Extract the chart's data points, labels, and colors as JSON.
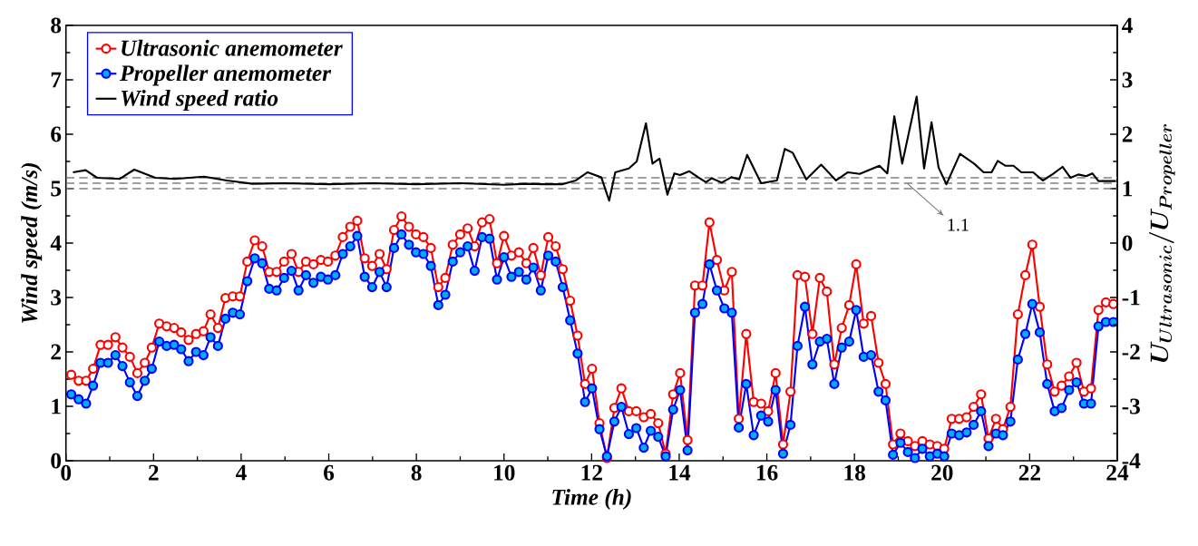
{
  "chart_data": {
    "type": "line",
    "xlabel": "Time (h)",
    "ylabel": "Wind speed (m/s)",
    "y2label": "U_{Ultrasonic} / U_{Propeller}",
    "xlim": [
      0,
      24
    ],
    "xticks": [
      0,
      2,
      4,
      6,
      8,
      10,
      12,
      14,
      16,
      18,
      20,
      22,
      24
    ],
    "ylim": [
      0,
      8
    ],
    "yticks": [
      0,
      1,
      2,
      3,
      4,
      5,
      6,
      7,
      8
    ],
    "y2lim": [
      -4,
      4
    ],
    "y2ticks": [
      -4,
      -3,
      -2,
      -1,
      0,
      1,
      2,
      3,
      4
    ],
    "legend": "top left",
    "marker": "circle",
    "line_style": "solid",
    "ref_lines": [
      {
        "axis": "y2",
        "value": 1.0,
        "color": "#808080",
        "line_style": "dashed"
      },
      {
        "axis": "y2",
        "value": 1.1,
        "label": "1.1",
        "color": "#808080",
        "line_style": "dashed"
      },
      {
        "axis": "y2",
        "value": 1.2,
        "color": "#808080",
        "line_style": "dashed"
      }
    ],
    "x": [
      0.12,
      0.29,
      0.46,
      0.62,
      0.79,
      0.96,
      1.13,
      1.29,
      1.46,
      1.63,
      1.8,
      1.96,
      2.13,
      2.3,
      2.47,
      2.63,
      2.8,
      2.97,
      3.14,
      3.3,
      3.47,
      3.64,
      3.81,
      3.97,
      4.14,
      4.31,
      4.48,
      4.64,
      4.81,
      4.98,
      5.15,
      5.31,
      5.48,
      5.65,
      5.82,
      5.98,
      6.15,
      6.32,
      6.49,
      6.65,
      6.82,
      6.99,
      7.16,
      7.32,
      7.49,
      7.66,
      7.83,
      7.99,
      8.16,
      8.33,
      8.5,
      8.66,
      8.83,
      9.0,
      9.17,
      9.33,
      9.5,
      9.67,
      9.84,
      10.0,
      10.17,
      10.34,
      10.51,
      10.67,
      10.84,
      11.01,
      11.18,
      11.34,
      11.51,
      11.68,
      11.85,
      12.01,
      12.18,
      12.35,
      12.52,
      12.68,
      12.85,
      13.02,
      13.19,
      13.35,
      13.52,
      13.69,
      13.86,
      14.02,
      14.19,
      14.36,
      14.53,
      14.69,
      14.86,
      15.03,
      15.2,
      15.36,
      15.53,
      15.7,
      15.87,
      16.03,
      16.2,
      16.37,
      16.54,
      16.7,
      16.87,
      17.04,
      17.21,
      17.37,
      17.54,
      17.71,
      17.88,
      18.04,
      18.21,
      18.38,
      18.55,
      18.71,
      18.88,
      19.05,
      19.22,
      19.38,
      19.55,
      19.72,
      19.89,
      20.05,
      20.22,
      20.39,
      20.56,
      20.72,
      20.89,
      21.06,
      21.23,
      21.39,
      21.56,
      21.73,
      21.9,
      22.06,
      22.23,
      22.4,
      22.57,
      22.73,
      22.9,
      23.07,
      23.24,
      23.4,
      23.57,
      23.74,
      23.91
    ],
    "series": [
      {
        "name": "Ultrasonic anemometer",
        "color": "#ff0000",
        "values": [
          1.58,
          1.47,
          1.47,
          1.69,
          2.13,
          2.13,
          2.27,
          2.08,
          1.91,
          1.61,
          1.8,
          2.08,
          2.52,
          2.47,
          2.44,
          2.36,
          2.22,
          2.33,
          2.38,
          2.69,
          2.44,
          2.99,
          3.02,
          3.02,
          3.66,
          4.05,
          3.94,
          3.47,
          3.47,
          3.66,
          3.8,
          3.47,
          3.66,
          3.61,
          3.69,
          3.66,
          3.77,
          4.11,
          4.3,
          4.41,
          3.72,
          3.58,
          3.8,
          3.52,
          4.24,
          4.49,
          4.3,
          4.16,
          4.11,
          3.91,
          3.19,
          3.36,
          3.97,
          4.16,
          4.27,
          3.94,
          4.38,
          4.44,
          3.63,
          4.13,
          3.77,
          3.83,
          3.63,
          3.91,
          3.41,
          4.11,
          3.94,
          3.52,
          2.94,
          2.3,
          1.41,
          1.69,
          0.69,
          0.05,
          0.97,
          1.33,
          0.91,
          0.91,
          0.8,
          0.86,
          0.69,
          0.13,
          1.22,
          1.61,
          0.38,
          3.22,
          3.22,
          4.38,
          3.69,
          3.13,
          3.47,
          0.77,
          2.33,
          1.08,
          1.05,
          0.91,
          1.61,
          0.3,
          1.27,
          3.41,
          3.38,
          2.33,
          3.36,
          3.11,
          1.77,
          2.44,
          2.86,
          3.61,
          2.52,
          2.66,
          1.8,
          1.41,
          0.3,
          0.5,
          0.36,
          0.27,
          0.36,
          0.3,
          0.27,
          0.22,
          0.77,
          0.77,
          0.8,
          0.99,
          1.22,
          0.41,
          0.77,
          0.58,
          0.99,
          2.69,
          3.41,
          3.97,
          2.83,
          1.77,
          1.27,
          1.38,
          1.55,
          1.8,
          1.27,
          1.33,
          2.77,
          2.91,
          2.88
        ]
      },
      {
        "name": "Propeller anemometer",
        "color": "#0000ff",
        "values": [
          1.22,
          1.13,
          1.05,
          1.38,
          1.8,
          1.8,
          1.94,
          1.74,
          1.44,
          1.19,
          1.47,
          1.69,
          2.19,
          2.11,
          2.13,
          2.05,
          1.83,
          2.0,
          1.94,
          2.27,
          2.11,
          2.61,
          2.72,
          2.69,
          3.3,
          3.72,
          3.63,
          3.16,
          3.13,
          3.36,
          3.49,
          3.13,
          3.41,
          3.27,
          3.38,
          3.33,
          3.41,
          3.8,
          3.94,
          4.13,
          3.38,
          3.19,
          3.47,
          3.19,
          3.91,
          4.16,
          3.97,
          3.83,
          3.8,
          3.58,
          2.86,
          3.05,
          3.66,
          3.83,
          3.94,
          3.49,
          4.11,
          4.08,
          3.33,
          3.74,
          3.38,
          3.47,
          3.33,
          3.55,
          3.13,
          3.77,
          3.66,
          3.19,
          2.58,
          1.97,
          1.08,
          1.33,
          0.58,
          0.08,
          0.72,
          0.99,
          0.49,
          0.6,
          0.24,
          0.55,
          0.44,
          0.08,
          0.94,
          1.3,
          0.19,
          2.72,
          2.88,
          3.61,
          3.13,
          2.8,
          2.72,
          0.61,
          1.41,
          0.47,
          0.83,
          0.72,
          1.3,
          0.13,
          0.66,
          2.11,
          2.83,
          1.77,
          2.19,
          2.24,
          1.41,
          2.08,
          2.19,
          2.77,
          1.91,
          1.94,
          1.27,
          1.11,
          0.11,
          0.33,
          0.16,
          0.05,
          0.22,
          0.08,
          0.13,
          0.08,
          0.5,
          0.47,
          0.52,
          0.66,
          0.91,
          0.27,
          0.5,
          0.47,
          0.72,
          1.86,
          2.33,
          2.88,
          2.36,
          1.41,
          0.91,
          0.97,
          1.3,
          1.44,
          1.05,
          1.05,
          2.47,
          2.55,
          2.55
        ]
      },
      {
        "name": "Wind speed ratio",
        "color": "#000000",
        "axis": "y2",
        "marker": "none",
        "x": [
          0.16,
          0.45,
          0.71,
          1.23,
          1.56,
          2.04,
          2.49,
          3.15,
          3.67,
          4.26,
          5.0,
          6.0,
          7.0,
          8.0,
          9.0,
          10.0,
          10.5,
          10.92,
          11.32,
          11.64,
          11.91,
          12.22,
          12.4,
          12.54,
          12.85,
          13.03,
          13.24,
          13.39,
          13.55,
          13.73,
          13.89,
          14.02,
          14.23,
          14.43,
          14.61,
          14.74,
          14.97,
          15.19,
          15.37,
          15.55,
          15.87,
          16.23,
          16.41,
          16.59,
          16.9,
          17.24,
          17.58,
          17.85,
          18.12,
          18.57,
          18.75,
          18.91,
          19.09,
          19.42,
          19.59,
          19.76,
          19.92,
          20.1,
          20.41,
          20.73,
          20.95,
          21.13,
          21.27,
          21.45,
          21.63,
          21.81,
          22.08,
          22.3,
          22.53,
          22.75,
          22.93,
          23.11,
          23.29,
          23.43,
          23.57,
          23.97
        ],
        "values": [
          1.3,
          1.34,
          1.2,
          1.18,
          1.35,
          1.2,
          1.18,
          1.22,
          1.15,
          1.09,
          1.1,
          1.08,
          1.1,
          1.08,
          1.1,
          1.07,
          1.09,
          1.08,
          1.08,
          1.15,
          1.3,
          1.21,
          0.78,
          1.3,
          1.37,
          1.5,
          2.2,
          1.46,
          1.55,
          0.89,
          1.28,
          1.25,
          1.32,
          1.21,
          1.12,
          1.19,
          1.11,
          1.21,
          1.17,
          1.62,
          1.1,
          1.15,
          1.73,
          1.66,
          1.17,
          1.44,
          1.15,
          1.3,
          1.27,
          1.42,
          1.28,
          2.33,
          1.46,
          2.69,
          1.37,
          2.22,
          1.39,
          1.08,
          1.64,
          1.46,
          1.3,
          1.3,
          1.51,
          1.42,
          1.42,
          1.3,
          1.3,
          1.15,
          1.27,
          1.4,
          1.2,
          1.26,
          1.23,
          1.28,
          1.14,
          1.14
        ]
      }
    ]
  }
}
